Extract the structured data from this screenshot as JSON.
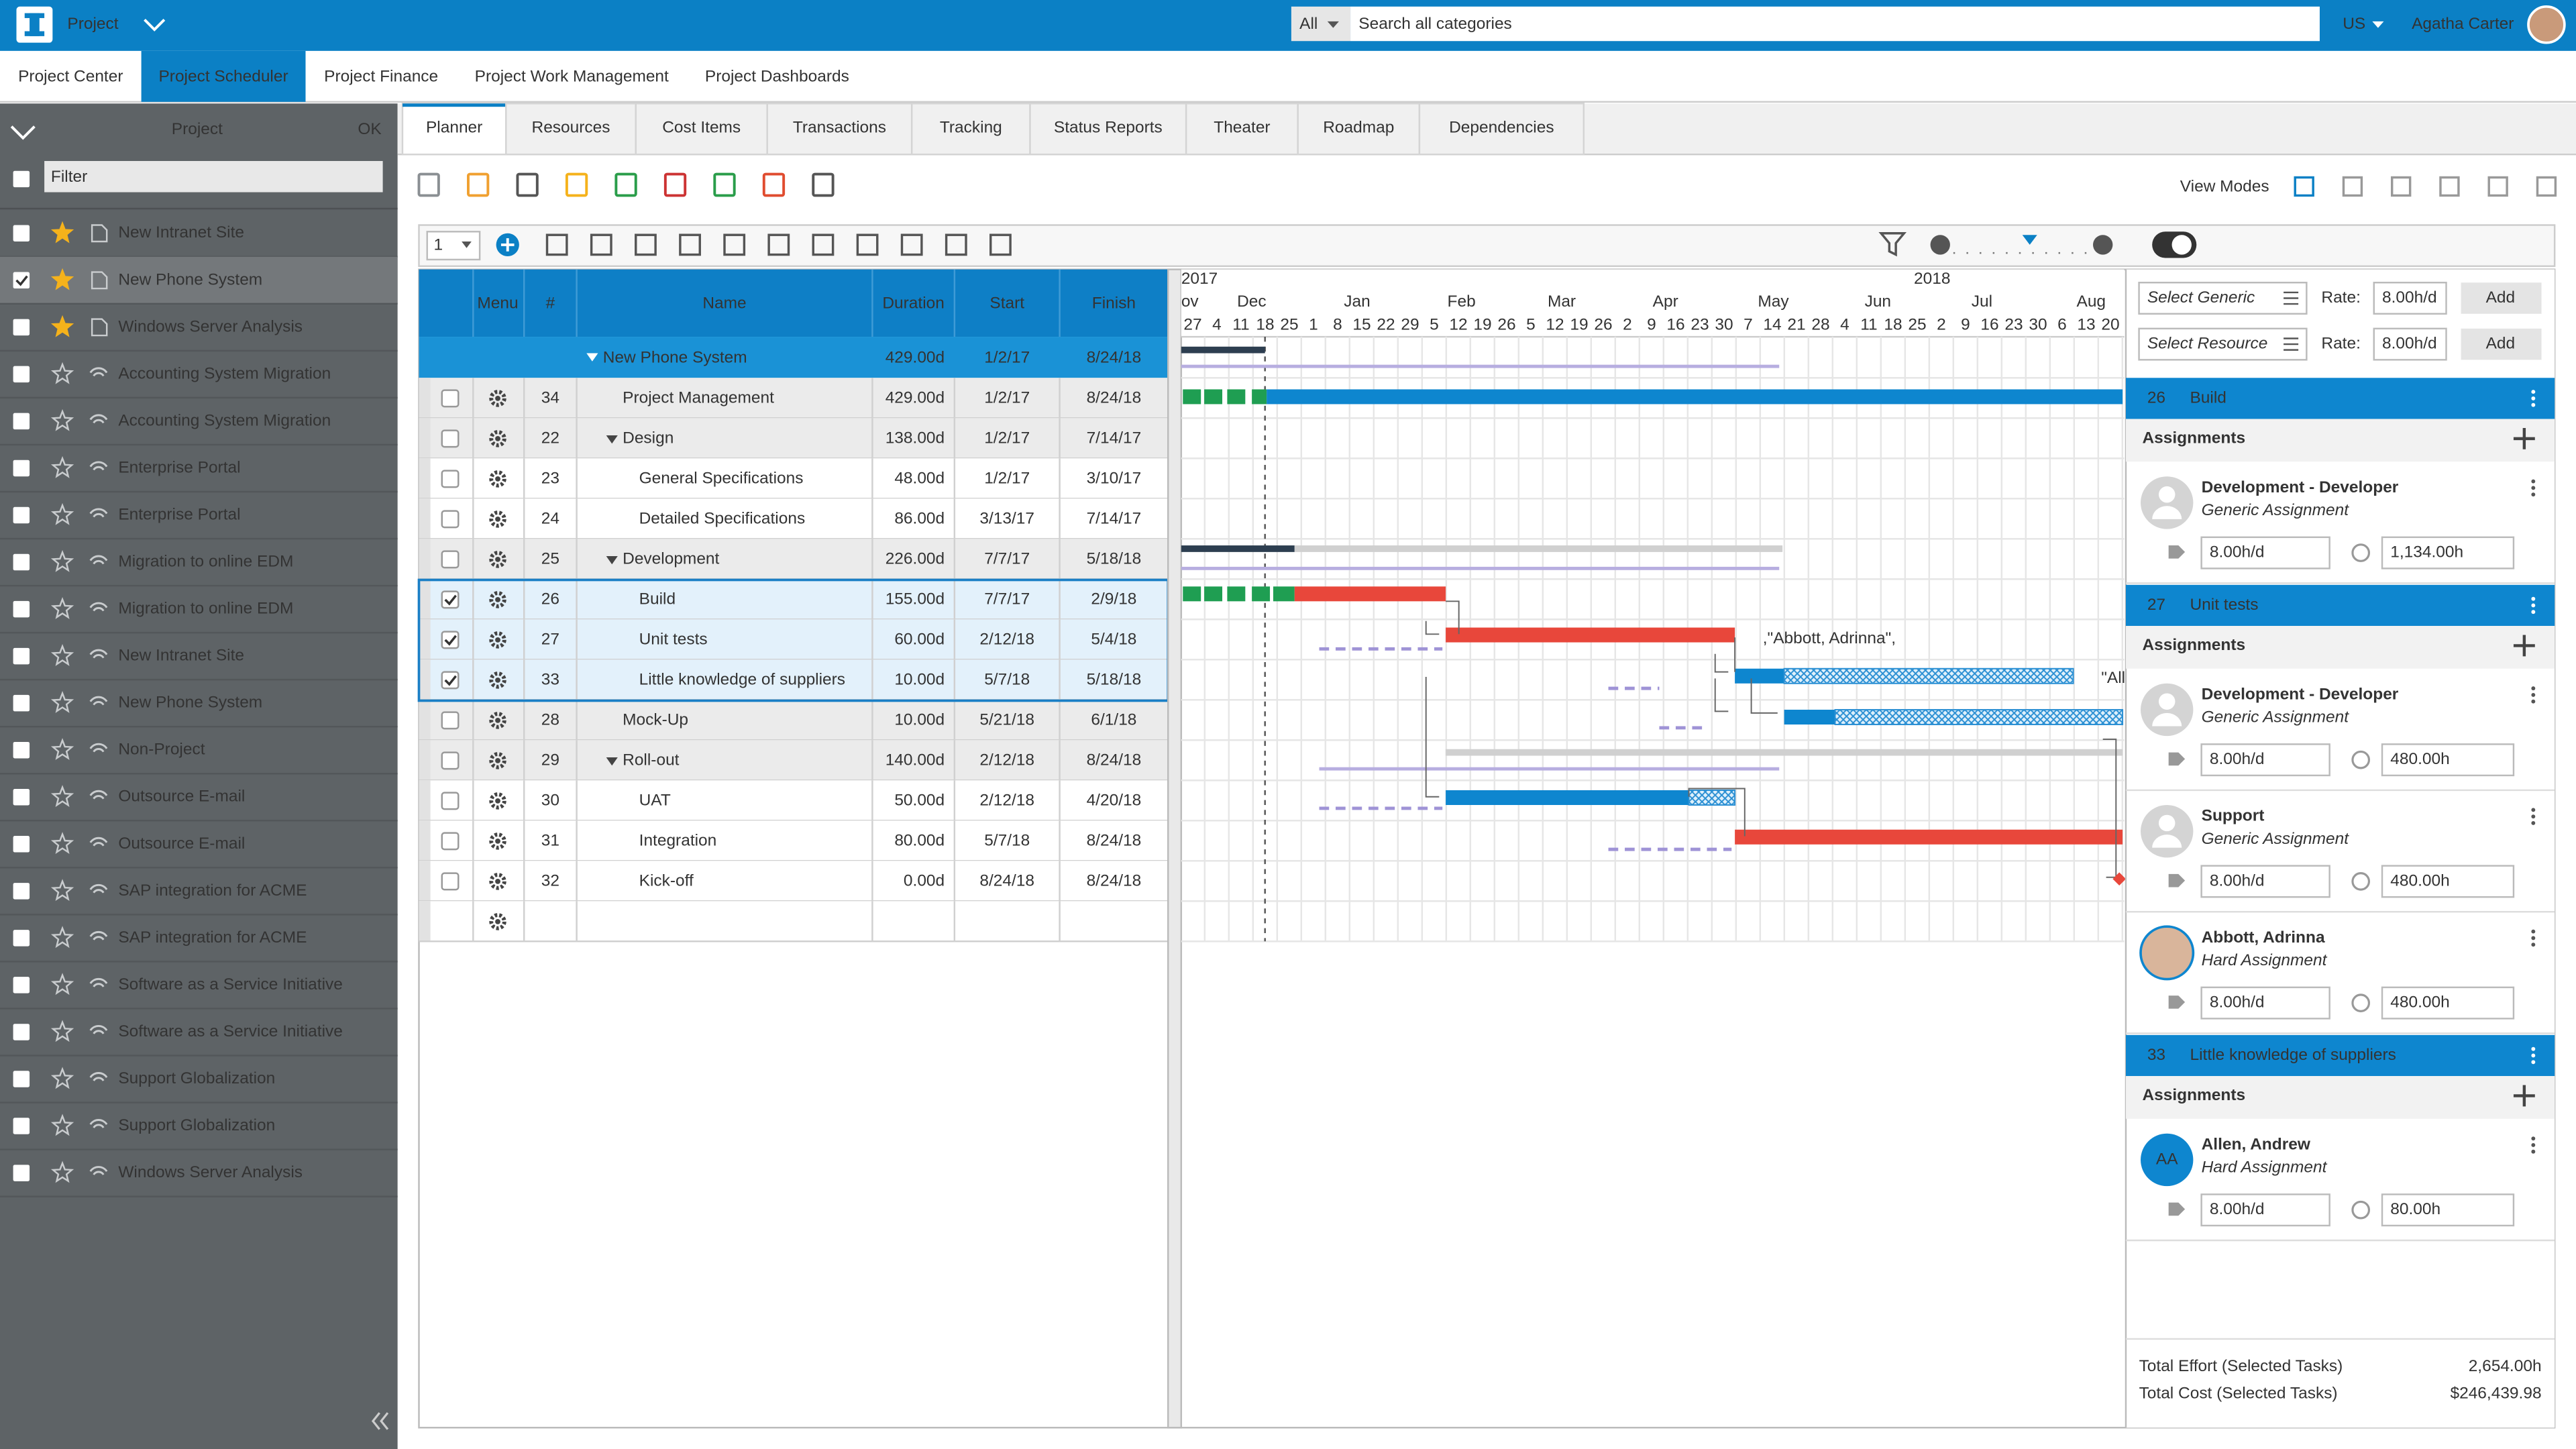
{
  "header": {
    "app": "Project",
    "search_scope": "All",
    "search_placeholder": "Search all categories",
    "locale": "US",
    "user": "Agatha Carter"
  },
  "nav": [
    "Project Center",
    "Project Scheduler",
    "Project Finance",
    "Project Work Management",
    "Project Dashboards"
  ],
  "sidebar": {
    "title": "Project",
    "ok": "OK",
    "filter_placeholder": "Filter",
    "projects": [
      "New Intranet Site",
      "New Phone System",
      "Windows Server Analysis",
      "Accounting System Migration",
      "Accounting System Migration",
      "Enterprise Portal",
      "Enterprise Portal",
      "Migration to online EDM",
      "Migration to online EDM",
      "New Intranet Site",
      "New Phone System",
      "Non-Project",
      "Outsource E-mail",
      "Outsource E-mail",
      "SAP integration for ACME",
      "SAP integration for ACME",
      "Software as a Service Initiative",
      "Software as a Service Initiative",
      "Support Globalization",
      "Support Globalization",
      "Windows Server Analysis"
    ]
  },
  "tabs": [
    "Planner",
    "Resources",
    "Cost Items",
    "Transactions",
    "Tracking",
    "Status Reports",
    "Theater",
    "Roadmap",
    "Dependencies"
  ],
  "toolbar": {
    "view_modes": "View Modes",
    "level": "1"
  },
  "grid": {
    "columns": [
      "Menu",
      "#",
      "Name",
      "Duration",
      "Start",
      "Finish"
    ],
    "summary": {
      "name": "New Phone System",
      "duration": "429.00d",
      "start": "1/2/17",
      "finish": "8/24/18"
    },
    "rows": [
      [
        "34",
        "Project Management",
        "429.00d",
        "1/2/17",
        "8/24/18"
      ],
      [
        "22",
        "Design",
        "138.00d",
        "1/2/17",
        "7/14/17"
      ],
      [
        "23",
        "General Specifications",
        "48.00d",
        "1/2/17",
        "3/10/17"
      ],
      [
        "24",
        "Detailed Specifications",
        "86.00d",
        "3/13/17",
        "7/14/17"
      ],
      [
        "25",
        "Development",
        "226.00d",
        "7/7/17",
        "5/18/18"
      ],
      [
        "26",
        "Build",
        "155.00d",
        "7/7/17",
        "2/9/18"
      ],
      [
        "27",
        "Unit tests",
        "60.00d",
        "2/12/18",
        "5/4/18"
      ],
      [
        "33",
        "Little knowledge of suppliers",
        "10.00d",
        "5/7/18",
        "5/18/18"
      ],
      [
        "28",
        "Mock-Up",
        "10.00d",
        "5/21/18",
        "6/1/18"
      ],
      [
        "29",
        "Roll-out",
        "140.00d",
        "2/12/18",
        "8/24/18"
      ],
      [
        "30",
        "UAT",
        "50.00d",
        "2/12/18",
        "4/20/18"
      ],
      [
        "31",
        "Integration",
        "80.00d",
        "5/7/18",
        "8/24/18"
      ],
      [
        "32",
        "Kick-off",
        "0.00d",
        "8/24/18",
        "8/24/18"
      ]
    ]
  },
  "gantt": {
    "years": [
      "2017",
      "2018"
    ],
    "months": [
      "ov",
      "Dec",
      "Jan",
      "Feb",
      "Mar",
      "Apr",
      "May",
      "Jun",
      "Jul",
      "Aug"
    ],
    "days": [
      "27",
      "4",
      "11",
      "18",
      "25",
      "1",
      "8",
      "15",
      "22",
      "29",
      "5",
      "12",
      "19",
      "26",
      "5",
      "12",
      "19",
      "26",
      "2",
      "9",
      "16",
      "23",
      "30",
      "7",
      "14",
      "21",
      "28",
      "4",
      "11",
      "18",
      "25",
      "2",
      "9",
      "16",
      "23",
      "30",
      "6",
      "13",
      "20"
    ],
    "labels": [
      ",\"Abbott, Adrinna\",",
      "\"All"
    ]
  },
  "resources": {
    "pickers": [
      {
        "placeholder": "Select Generic",
        "rate_label": "Rate:",
        "rate": "8.00h/d",
        "button": "Add"
      },
      {
        "placeholder": "Select Resource",
        "rate_label": "Rate:",
        "rate": "8.00h/d",
        "button": "Add"
      }
    ],
    "tasks": [
      {
        "id": "26",
        "name": "Build",
        "assignments_label": "Assignments",
        "assignments": [
          {
            "name": "Development - Developer",
            "type": "Generic Assignment",
            "rate": "8.00h/d",
            "hours": "1,134.00h"
          }
        ]
      },
      {
        "id": "27",
        "name": "Unit tests",
        "assignments_label": "Assignments",
        "assignments": [
          {
            "name": "Development - Developer",
            "type": "Generic Assignment",
            "rate": "8.00h/d",
            "hours": "480.00h"
          },
          {
            "name": "Support",
            "type": "Generic Assignment",
            "rate": "8.00h/d",
            "hours": "480.00h"
          },
          {
            "name": "Abbott, Adrinna",
            "type": "Hard Assignment",
            "rate": "8.00h/d",
            "hours": "480.00h"
          }
        ]
      },
      {
        "id": "33",
        "name": "Little knowledge of suppliers",
        "assignments_label": "Assignments",
        "assignments": [
          {
            "name": "Allen, Andrew",
            "type": "Hard Assignment",
            "rate": "8.00h/d",
            "hours": "80.00h",
            "initials": "AA"
          }
        ]
      }
    ]
  },
  "totals": [
    {
      "label": "Total Effort (Selected Tasks)",
      "value": "2,654.00h"
    },
    {
      "label": "Total Cost (Selected Tasks)",
      "value": "$246,439.98"
    }
  ]
}
